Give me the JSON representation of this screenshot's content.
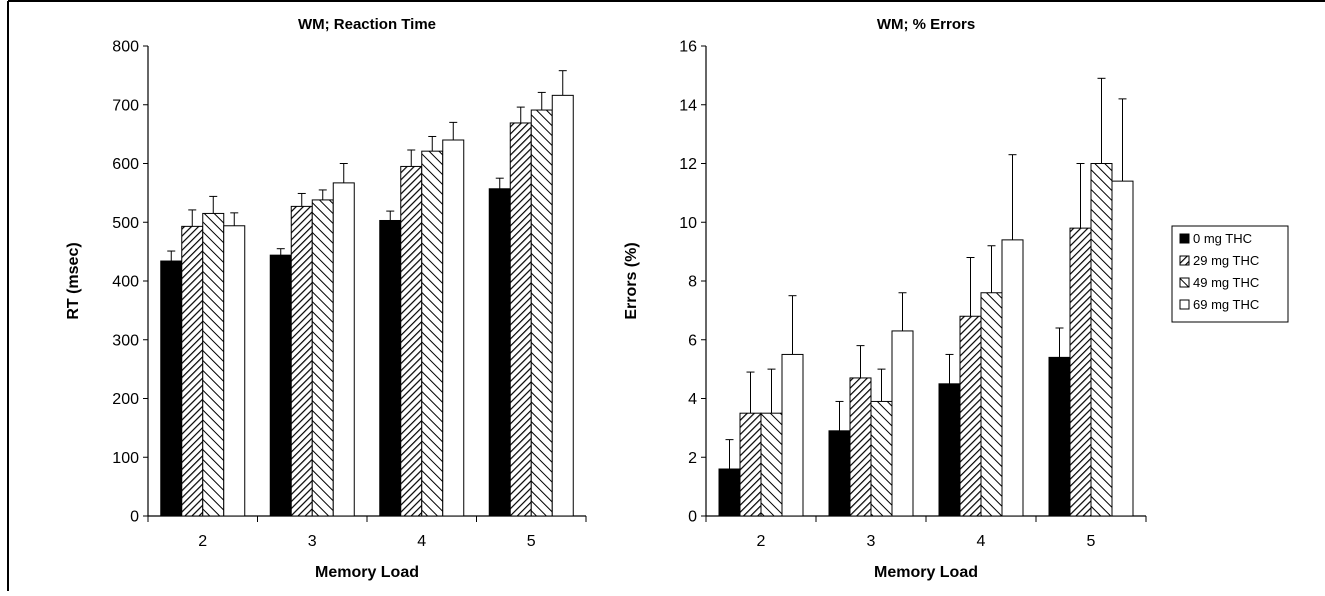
{
  "chart_data": [
    {
      "type": "bar",
      "title": "WM; Reaction Time",
      "xlabel": "Memory Load",
      "ylabel": "RT (msec)",
      "categories": [
        "2",
        "3",
        "4",
        "5"
      ],
      "ylim": [
        0,
        800
      ],
      "yticks": [
        0,
        100,
        200,
        300,
        400,
        500,
        600,
        700,
        800
      ],
      "grid": false,
      "series": [
        {
          "name": "0 mg THC",
          "values": [
            434,
            444,
            503,
            557
          ],
          "errors": [
            17,
            11,
            16,
            18
          ]
        },
        {
          "name": "29 mg THC",
          "values": [
            493,
            527,
            595,
            669
          ],
          "errors": [
            28,
            22,
            28,
            27
          ]
        },
        {
          "name": "49 mg THC",
          "values": [
            515,
            538,
            621,
            691
          ],
          "errors": [
            29,
            17,
            25,
            30
          ]
        },
        {
          "name": "69 mg THC",
          "values": [
            494,
            567,
            640,
            716
          ],
          "errors": [
            22,
            33,
            30,
            42
          ]
        }
      ]
    },
    {
      "type": "bar",
      "title": "WM; % Errors",
      "xlabel": "Memory Load",
      "ylabel": "Errors (%)",
      "categories": [
        "2",
        "3",
        "4",
        "5"
      ],
      "ylim": [
        0,
        16
      ],
      "yticks": [
        0,
        2,
        4,
        6,
        8,
        10,
        12,
        14,
        16
      ],
      "grid": false,
      "legend": "right",
      "series": [
        {
          "name": "0 mg THC",
          "values": [
            1.6,
            2.9,
            4.5,
            5.4
          ],
          "errors": [
            1.0,
            1.0,
            1.0,
            1.0
          ]
        },
        {
          "name": "29 mg THC",
          "values": [
            3.5,
            4.7,
            6.8,
            9.8
          ],
          "errors": [
            1.4,
            1.1,
            2.0,
            2.2
          ]
        },
        {
          "name": "49 mg THC",
          "values": [
            3.5,
            3.9,
            7.6,
            12.0
          ],
          "errors": [
            1.5,
            1.1,
            1.6,
            2.9
          ]
        },
        {
          "name": "69 mg THC",
          "values": [
            5.5,
            6.3,
            9.4,
            11.4
          ],
          "errors": [
            2.0,
            1.3,
            2.9,
            2.8
          ]
        }
      ]
    }
  ],
  "series_fills": [
    "solid-black",
    "dense-diagonal-hatch",
    "wide-diagonal-hatch",
    "white"
  ]
}
